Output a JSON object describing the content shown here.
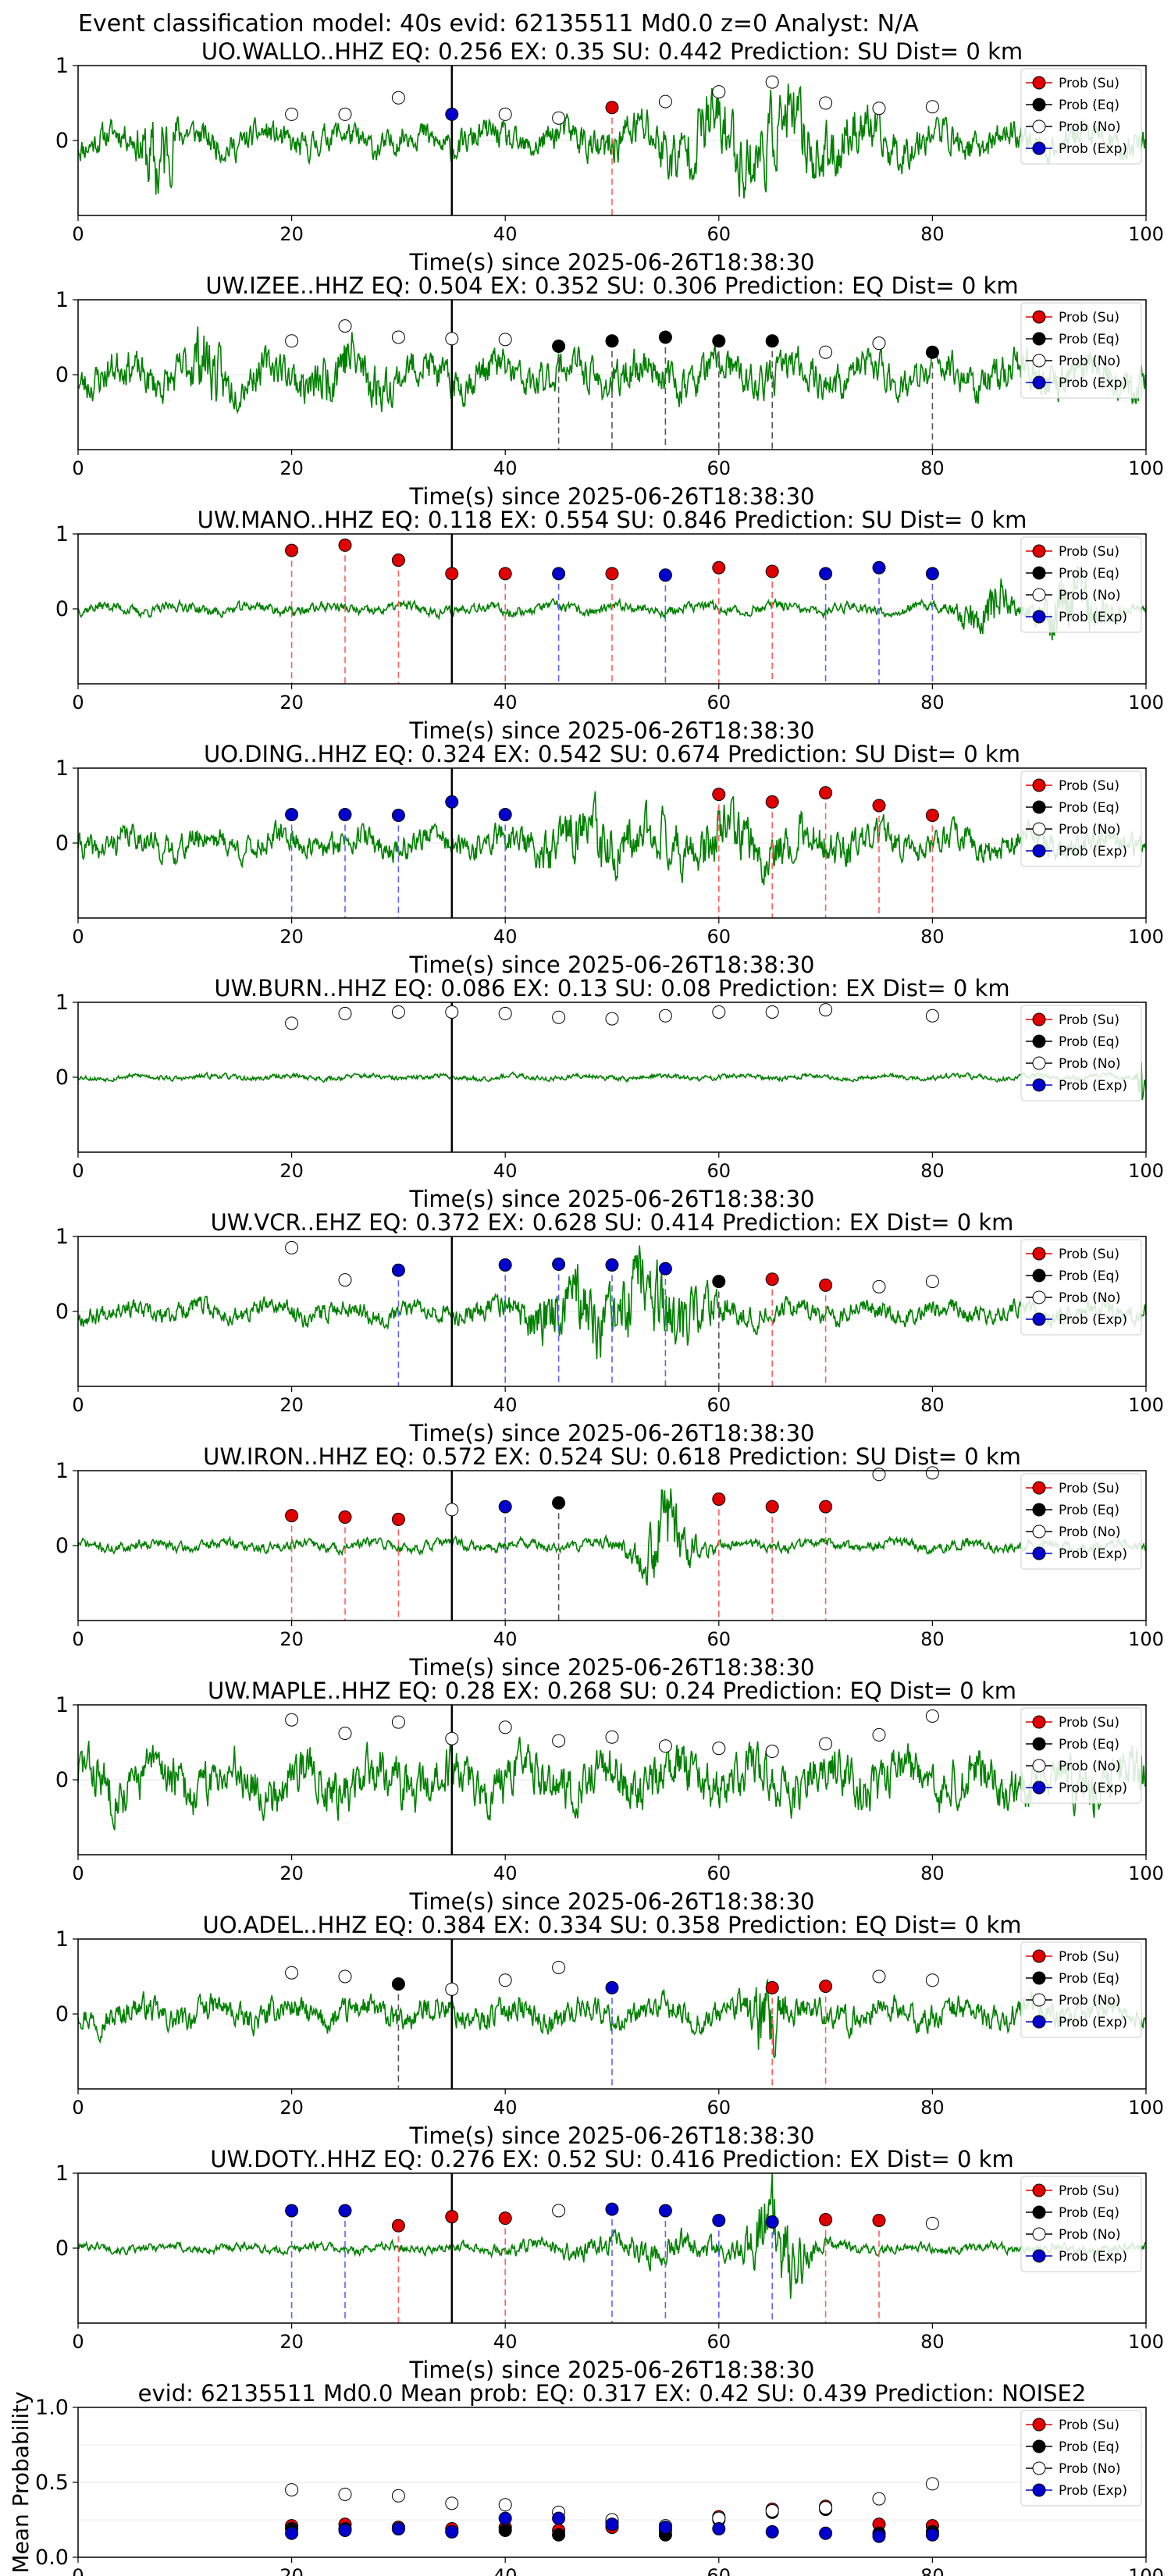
{
  "figure_title": "Event classification model: 40s evid: 62135511 Md0.0 z=0 Analyst: N/A",
  "colors": {
    "waveform": "#008000",
    "su": "#e00000",
    "eq": "#000000",
    "no": "#ffffff",
    "exp": "#0000cc",
    "su_line": "#ff6060",
    "eq_line": "#555555",
    "exp_line": "#6060ff"
  },
  "legend_labels": [
    "Prob (Su)",
    "Prob (Eq)",
    "Prob (No)",
    "Prob (Exp)"
  ],
  "chart_data": [
    {
      "type": "line",
      "station": "UO.WALLO..HHZ",
      "title": "UO.WALLO..HHZ   EQ: 0.256  EX: 0.35  SU: 0.442   Prediction: SU    Dist= 0 km",
      "xlabel": "Time(s) since 2025-06-26T18:38:30",
      "xlim": [
        0,
        100
      ],
      "ylim": [
        -1,
        1
      ],
      "xticks": [
        "0",
        "20",
        "40",
        "60",
        "80",
        "100"
      ],
      "yticks": [
        "1",
        "0"
      ],
      "amp": 0.32,
      "seed": 11,
      "bursts": [
        [
          7.5,
          1.5,
          0.8
        ],
        [
          60,
          10,
          0.35
        ],
        [
          68,
          10,
          0.3
        ]
      ],
      "event_marker_x": 35,
      "points": [
        {
          "x": 20,
          "y": 0.35,
          "cls": "no"
        },
        {
          "x": 25,
          "y": 0.35,
          "cls": "no"
        },
        {
          "x": 30,
          "y": 0.57,
          "cls": "no"
        },
        {
          "x": 35,
          "y": 0.35,
          "cls": "exp"
        },
        {
          "x": 40,
          "y": 0.35,
          "cls": "no"
        },
        {
          "x": 45,
          "y": 0.3,
          "cls": "no"
        },
        {
          "x": 50,
          "y": 0.44,
          "cls": "su"
        },
        {
          "x": 55,
          "y": 0.52,
          "cls": "no"
        },
        {
          "x": 60,
          "y": 0.65,
          "cls": "no"
        },
        {
          "x": 65,
          "y": 0.78,
          "cls": "no"
        },
        {
          "x": 70,
          "y": 0.5,
          "cls": "no"
        },
        {
          "x": 75,
          "y": 0.43,
          "cls": "no"
        },
        {
          "x": 80,
          "y": 0.45,
          "cls": "no"
        }
      ]
    },
    {
      "type": "line",
      "station": "UW.IZEE..HHZ",
      "title": "UW.IZEE..HHZ   EQ: 0.504  EX: 0.352  SU: 0.306   Prediction: EQ    Dist= 0 km",
      "xlabel": "Time(s) since 2025-06-26T18:38:30",
      "xlim": [
        0,
        100
      ],
      "ylim": [
        -1,
        1
      ],
      "xticks": [
        "0",
        "20",
        "40",
        "60",
        "80",
        "100"
      ],
      "yticks": [
        "1",
        "0"
      ],
      "amp": 0.42,
      "seed": 23,
      "bursts": [
        [
          12,
          2,
          0.4
        ],
        [
          25,
          3,
          0.35
        ]
      ],
      "event_marker_x": 35,
      "points": [
        {
          "x": 20,
          "y": 0.45,
          "cls": "no"
        },
        {
          "x": 25,
          "y": 0.65,
          "cls": "no"
        },
        {
          "x": 30,
          "y": 0.5,
          "cls": "no"
        },
        {
          "x": 35,
          "y": 0.48,
          "cls": "no"
        },
        {
          "x": 40,
          "y": 0.47,
          "cls": "no"
        },
        {
          "x": 45,
          "y": 0.38,
          "cls": "eq"
        },
        {
          "x": 50,
          "y": 0.45,
          "cls": "eq"
        },
        {
          "x": 55,
          "y": 0.5,
          "cls": "eq"
        },
        {
          "x": 60,
          "y": 0.45,
          "cls": "eq"
        },
        {
          "x": 65,
          "y": 0.45,
          "cls": "eq"
        },
        {
          "x": 70,
          "y": 0.3,
          "cls": "no"
        },
        {
          "x": 75,
          "y": 0.42,
          "cls": "no"
        },
        {
          "x": 80,
          "y": 0.3,
          "cls": "eq"
        }
      ]
    },
    {
      "type": "line",
      "station": "UW.MANO..HHZ",
      "title": "UW.MANO..HHZ   EQ: 0.118  EX: 0.554  SU: 0.846   Prediction: SU    Dist= 0 km",
      "xlabel": "Time(s) since 2025-06-26T18:38:30",
      "xlim": [
        0,
        100
      ],
      "ylim": [
        -1,
        1
      ],
      "xticks": [
        "0",
        "20",
        "40",
        "60",
        "80",
        "100"
      ],
      "yticks": [
        "1",
        "0"
      ],
      "amp": 0.12,
      "seed": 37,
      "bursts": [
        [
          85,
          2,
          0.6
        ],
        [
          93,
          3,
          0.7
        ]
      ],
      "event_marker_x": 35,
      "points": [
        {
          "x": 20,
          "y": 0.78,
          "cls": "su"
        },
        {
          "x": 25,
          "y": 0.85,
          "cls": "su"
        },
        {
          "x": 30,
          "y": 0.65,
          "cls": "su"
        },
        {
          "x": 35,
          "y": 0.47,
          "cls": "su"
        },
        {
          "x": 40,
          "y": 0.47,
          "cls": "su"
        },
        {
          "x": 45,
          "y": 0.47,
          "cls": "exp"
        },
        {
          "x": 50,
          "y": 0.47,
          "cls": "su"
        },
        {
          "x": 55,
          "y": 0.45,
          "cls": "exp"
        },
        {
          "x": 60,
          "y": 0.55,
          "cls": "su"
        },
        {
          "x": 65,
          "y": 0.5,
          "cls": "su"
        },
        {
          "x": 70,
          "y": 0.47,
          "cls": "exp"
        },
        {
          "x": 75,
          "y": 0.55,
          "cls": "exp"
        },
        {
          "x": 80,
          "y": 0.47,
          "cls": "exp"
        }
      ]
    },
    {
      "type": "line",
      "station": "UO.DING..HHZ",
      "title": "UO.DING..HHZ   EQ: 0.324  EX: 0.542  SU: 0.674   Prediction: SU    Dist= 0 km",
      "xlabel": "Time(s) since 2025-06-26T18:38:30",
      "xlim": [
        0,
        100
      ],
      "ylim": [
        -1,
        1
      ],
      "xticks": [
        "0",
        "20",
        "40",
        "60",
        "80",
        "100"
      ],
      "yticks": [
        "1",
        "0"
      ],
      "amp": 0.3,
      "seed": 41,
      "bursts": [
        [
          48,
          4,
          0.35
        ],
        [
          60,
          12,
          0.3
        ]
      ],
      "event_marker_x": 35,
      "points": [
        {
          "x": 20,
          "y": 0.38,
          "cls": "exp"
        },
        {
          "x": 25,
          "y": 0.38,
          "cls": "exp"
        },
        {
          "x": 30,
          "y": 0.37,
          "cls": "exp"
        },
        {
          "x": 35,
          "y": 0.55,
          "cls": "exp"
        },
        {
          "x": 40,
          "y": 0.38,
          "cls": "exp"
        },
        {
          "x": 60,
          "y": 0.65,
          "cls": "su"
        },
        {
          "x": 65,
          "y": 0.55,
          "cls": "su"
        },
        {
          "x": 70,
          "y": 0.67,
          "cls": "su"
        },
        {
          "x": 75,
          "y": 0.5,
          "cls": "su"
        },
        {
          "x": 80,
          "y": 0.37,
          "cls": "su"
        }
      ]
    },
    {
      "type": "line",
      "station": "UW.BURN..HHZ",
      "title": "UW.BURN..HHZ   EQ: 0.086  EX: 0.13  SU: 0.08   Prediction: EX    Dist= 0 km",
      "xlabel": "Time(s) since 2025-06-26T18:38:30",
      "xlim": [
        0,
        100
      ],
      "ylim": [
        -1,
        1
      ],
      "xticks": [
        "0",
        "20",
        "40",
        "60",
        "80",
        "100"
      ],
      "yticks": [
        "1",
        "0"
      ],
      "amp": 0.06,
      "seed": 53,
      "bursts": [
        [
          99.6,
          0.4,
          0.9
        ]
      ],
      "event_marker_x": 35,
      "points": [
        {
          "x": 20,
          "y": 0.72,
          "cls": "no"
        },
        {
          "x": 25,
          "y": 0.85,
          "cls": "no"
        },
        {
          "x": 30,
          "y": 0.87,
          "cls": "no"
        },
        {
          "x": 35,
          "y": 0.87,
          "cls": "no"
        },
        {
          "x": 40,
          "y": 0.85,
          "cls": "no"
        },
        {
          "x": 45,
          "y": 0.8,
          "cls": "no"
        },
        {
          "x": 50,
          "y": 0.78,
          "cls": "no"
        },
        {
          "x": 55,
          "y": 0.82,
          "cls": "no"
        },
        {
          "x": 60,
          "y": 0.87,
          "cls": "no"
        },
        {
          "x": 65,
          "y": 0.87,
          "cls": "no"
        },
        {
          "x": 70,
          "y": 0.9,
          "cls": "no"
        },
        {
          "x": 80,
          "y": 0.82,
          "cls": "no"
        }
      ]
    },
    {
      "type": "line",
      "station": "UW.VCR..EHZ",
      "title": "UW.VCR..EHZ   EQ: 0.372  EX: 0.628  SU: 0.414   Prediction: EX    Dist= 0 km",
      "xlabel": "Time(s) since 2025-06-26T18:38:30",
      "xlim": [
        0,
        100
      ],
      "ylim": [
        -1,
        1
      ],
      "xticks": [
        "0",
        "20",
        "40",
        "60",
        "80",
        "100"
      ],
      "yticks": [
        "1",
        "0"
      ],
      "amp": 0.22,
      "seed": 67,
      "bursts": [
        [
          53,
          6,
          0.7
        ],
        [
          45,
          4,
          0.35
        ]
      ],
      "event_marker_x": 35,
      "points": [
        {
          "x": 20,
          "y": 0.85,
          "cls": "no"
        },
        {
          "x": 25,
          "y": 0.42,
          "cls": "no"
        },
        {
          "x": 30,
          "y": 0.55,
          "cls": "exp"
        },
        {
          "x": 40,
          "y": 0.62,
          "cls": "exp"
        },
        {
          "x": 45,
          "y": 0.63,
          "cls": "exp"
        },
        {
          "x": 50,
          "y": 0.62,
          "cls": "exp"
        },
        {
          "x": 55,
          "y": 0.57,
          "cls": "exp"
        },
        {
          "x": 60,
          "y": 0.4,
          "cls": "eq"
        },
        {
          "x": 65,
          "y": 0.43,
          "cls": "su"
        },
        {
          "x": 70,
          "y": 0.35,
          "cls": "su"
        },
        {
          "x": 75,
          "y": 0.33,
          "cls": "no"
        },
        {
          "x": 80,
          "y": 0.4,
          "cls": "no"
        }
      ]
    },
    {
      "type": "line",
      "station": "UW.IRON..HHZ",
      "title": "UW.IRON..HHZ   EQ: 0.572  EX: 0.524  SU: 0.618   Prediction: SU    Dist= 0 km",
      "xlabel": "Time(s) since 2025-06-26T18:38:30",
      "xlim": [
        0,
        100
      ],
      "ylim": [
        -1,
        1
      ],
      "xticks": [
        "0",
        "20",
        "40",
        "60",
        "80",
        "100"
      ],
      "yticks": [
        "1",
        "0"
      ],
      "amp": 0.12,
      "seed": 71,
      "bursts": [
        [
          55,
          2.5,
          0.9
        ]
      ],
      "event_marker_x": 35,
      "points": [
        {
          "x": 20,
          "y": 0.4,
          "cls": "su"
        },
        {
          "x": 25,
          "y": 0.38,
          "cls": "su"
        },
        {
          "x": 30,
          "y": 0.35,
          "cls": "su"
        },
        {
          "x": 35,
          "y": 0.48,
          "cls": "no"
        },
        {
          "x": 40,
          "y": 0.52,
          "cls": "exp"
        },
        {
          "x": 45,
          "y": 0.57,
          "cls": "eq"
        },
        {
          "x": 60,
          "y": 0.62,
          "cls": "su"
        },
        {
          "x": 65,
          "y": 0.52,
          "cls": "su"
        },
        {
          "x": 70,
          "y": 0.52,
          "cls": "su"
        },
        {
          "x": 75,
          "y": 0.95,
          "cls": "no"
        },
        {
          "x": 80,
          "y": 0.97,
          "cls": "no"
        }
      ]
    },
    {
      "type": "line",
      "station": "UW.MAPLE..HHZ",
      "title": "UW.MAPLE..HHZ   EQ: 0.28  EX: 0.268  SU: 0.24   Prediction: EQ    Dist= 0 km",
      "xlabel": "Time(s) since 2025-06-26T18:38:30",
      "xlim": [
        0,
        100
      ],
      "ylim": [
        -1,
        1
      ],
      "xticks": [
        "0",
        "20",
        "40",
        "60",
        "80",
        "100"
      ],
      "yticks": [
        "1",
        "0"
      ],
      "amp": 0.55,
      "seed": 83,
      "bursts": [],
      "event_marker_x": 35,
      "points": [
        {
          "x": 20,
          "y": 0.8,
          "cls": "no"
        },
        {
          "x": 25,
          "y": 0.62,
          "cls": "no"
        },
        {
          "x": 30,
          "y": 0.77,
          "cls": "no"
        },
        {
          "x": 35,
          "y": 0.55,
          "cls": "no"
        },
        {
          "x": 40,
          "y": 0.7,
          "cls": "no"
        },
        {
          "x": 45,
          "y": 0.52,
          "cls": "no"
        },
        {
          "x": 50,
          "y": 0.57,
          "cls": "no"
        },
        {
          "x": 55,
          "y": 0.45,
          "cls": "no"
        },
        {
          "x": 60,
          "y": 0.42,
          "cls": "no"
        },
        {
          "x": 65,
          "y": 0.38,
          "cls": "no"
        },
        {
          "x": 70,
          "y": 0.48,
          "cls": "no"
        },
        {
          "x": 75,
          "y": 0.6,
          "cls": "no"
        },
        {
          "x": 80,
          "y": 0.85,
          "cls": "no"
        }
      ]
    },
    {
      "type": "line",
      "station": "UO.ADEL..HHZ",
      "title": "UO.ADEL..HHZ   EQ: 0.384  EX: 0.334  SU: 0.358   Prediction: EQ    Dist= 0 km",
      "xlabel": "Time(s) since 2025-06-26T18:38:30",
      "xlim": [
        0,
        100
      ],
      "ylim": [
        -1,
        1
      ],
      "xticks": [
        "0",
        "20",
        "40",
        "60",
        "80",
        "100"
      ],
      "yticks": [
        "1",
        "0"
      ],
      "amp": 0.3,
      "seed": 97,
      "bursts": [
        [
          64.5,
          1.5,
          0.8
        ]
      ],
      "event_marker_x": 35,
      "points": [
        {
          "x": 20,
          "y": 0.55,
          "cls": "no"
        },
        {
          "x": 25,
          "y": 0.5,
          "cls": "no"
        },
        {
          "x": 30,
          "y": 0.4,
          "cls": "eq"
        },
        {
          "x": 35,
          "y": 0.33,
          "cls": "no"
        },
        {
          "x": 40,
          "y": 0.45,
          "cls": "no"
        },
        {
          "x": 45,
          "y": 0.62,
          "cls": "no"
        },
        {
          "x": 50,
          "y": 0.35,
          "cls": "exp"
        },
        {
          "x": 65,
          "y": 0.35,
          "cls": "su"
        },
        {
          "x": 70,
          "y": 0.37,
          "cls": "su"
        },
        {
          "x": 75,
          "y": 0.5,
          "cls": "no"
        },
        {
          "x": 80,
          "y": 0.45,
          "cls": "no"
        }
      ]
    },
    {
      "type": "line",
      "station": "UW.DOTY..HHZ",
      "title": "UW.DOTY..HHZ   EQ: 0.276  EX: 0.52  SU: 0.416   Prediction: EX    Dist= 0 km",
      "xlabel": "Time(s) since 2025-06-26T18:38:30",
      "xlim": [
        0,
        100
      ],
      "ylim": [
        -1,
        1
      ],
      "xticks": [
        "0",
        "20",
        "40",
        "60",
        "80",
        "100"
      ],
      "yticks": [
        "1",
        "0"
      ],
      "amp": 0.1,
      "seed": 101,
      "bursts": [
        [
          65.5,
          2.5,
          0.9
        ],
        [
          55,
          12,
          0.2
        ]
      ],
      "event_marker_x": 35,
      "points": [
        {
          "x": 20,
          "y": 0.5,
          "cls": "exp"
        },
        {
          "x": 25,
          "y": 0.5,
          "cls": "exp"
        },
        {
          "x": 30,
          "y": 0.3,
          "cls": "su"
        },
        {
          "x": 35,
          "y": 0.42,
          "cls": "su"
        },
        {
          "x": 40,
          "y": 0.4,
          "cls": "su"
        },
        {
          "x": 45,
          "y": 0.5,
          "cls": "no"
        },
        {
          "x": 50,
          "y": 0.52,
          "cls": "exp"
        },
        {
          "x": 55,
          "y": 0.5,
          "cls": "exp"
        },
        {
          "x": 60,
          "y": 0.37,
          "cls": "exp"
        },
        {
          "x": 65,
          "y": 0.35,
          "cls": "exp"
        },
        {
          "x": 70,
          "y": 0.38,
          "cls": "su"
        },
        {
          "x": 75,
          "y": 0.37,
          "cls": "su"
        },
        {
          "x": 80,
          "y": 0.33,
          "cls": "no"
        }
      ]
    },
    {
      "type": "scatter",
      "title": "evid: 62135511  Md0.0   Mean prob:   EQ: 0.317  EX: 0.42  SU: 0.439   Prediction: NOISE2",
      "ylabel": "Mean Probability",
      "xlim": [
        0,
        100
      ],
      "ylim": [
        0,
        1
      ],
      "xticks": [
        "0",
        "20",
        "40",
        "60",
        "80",
        "100"
      ],
      "yticks": [
        "1.0",
        "0.5",
        "0.0"
      ],
      "x": [
        20,
        25,
        30,
        35,
        40,
        45,
        50,
        55,
        60,
        65,
        70,
        75,
        80
      ],
      "series": [
        {
          "cls": "su",
          "values": [
            0.21,
            0.22,
            0.2,
            0.19,
            0.2,
            0.18,
            0.2,
            0.18,
            0.27,
            0.32,
            0.34,
            0.22,
            0.21
          ]
        },
        {
          "cls": "eq",
          "values": [
            0.19,
            0.19,
            0.19,
            0.17,
            0.18,
            0.15,
            0.24,
            0.15,
            0.25,
            0.3,
            0.32,
            0.16,
            0.17
          ]
        },
        {
          "cls": "no",
          "values": [
            0.45,
            0.42,
            0.41,
            0.36,
            0.35,
            0.3,
            0.25,
            0.21,
            0.26,
            0.31,
            0.33,
            0.39,
            0.49
          ]
        },
        {
          "cls": "exp",
          "values": [
            0.16,
            0.18,
            0.19,
            0.17,
            0.26,
            0.26,
            0.22,
            0.2,
            0.19,
            0.17,
            0.16,
            0.14,
            0.15
          ]
        }
      ]
    }
  ]
}
